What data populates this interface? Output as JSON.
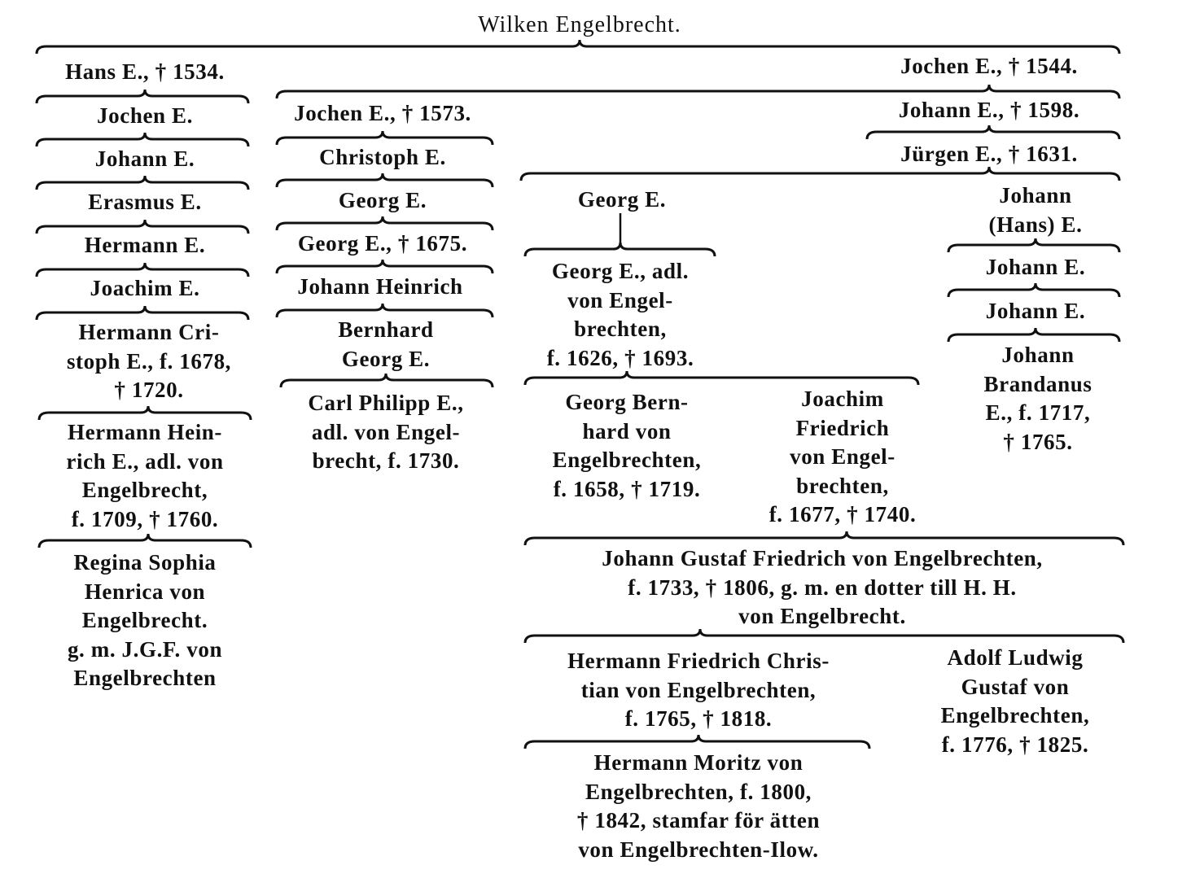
{
  "title": "Wilken Engelbrecht.",
  "nodes": {
    "hans": "Hans E., † 1534.",
    "jochen_a": "Jochen E.",
    "johann_a": "Johann E.",
    "erasmus": "Erasmus E.",
    "hermann_a": "Hermann E.",
    "joachim_a": "Joachim E.",
    "hermann_cristoph": "Hermann Cri-\nstoph E., f. 1678,\n† 1720.",
    "hermann_heinrich": "Hermann Hein-\nrich E., adl. von\nEngelbrecht,\nf. 1709, † 1760.",
    "regina": "Regina Sophia\nHenrica von\nEngelbrecht.\ng. m. J.G.F. von\nEngelbrechten",
    "jochen_1544": "Jochen E., † 1544.",
    "jochen_1573": "Jochen E., † 1573.",
    "christoph": "Christoph E.",
    "georg_b": "Georg E.",
    "georg_1675": "Georg E., † 1675.",
    "johann_heinrich": "Johann Heinrich",
    "bernhard_georg": "Bernhard\nGeorg E.",
    "carl_philipp": "Carl Philipp E.,\nadl. von Engel-\nbrecht, f. 1730.",
    "johann_1598": "Johann E., † 1598.",
    "jurgen": "Jürgen E., † 1631.",
    "georg_c": "Georg E.",
    "georg_adl": "Georg E., adl.\nvon Engel-\nbrechten,\nf. 1626, † 1693.",
    "georg_bernhard": "Georg Bern-\nhard von\nEngelbrechten,\nf. 1658, † 1719.",
    "joachim_friedrich": "Joachim\nFriedrich\nvon Engel-\nbrechten,\nf. 1677, † 1740.",
    "johann_gustaf": "Johann Gustaf Friedrich von Engelbrechten,\nf. 1733, † 1806, g. m. en dotter till H. H.\nvon Engelbrecht.",
    "hermann_friedrich": "Hermann Friedrich Chris-\ntian von Engelbrechten,\nf. 1765, † 1818.",
    "adolf_ludwig": "Adolf Ludwig\nGustaf von\nEngelbrechten,\nf. 1776, † 1825.",
    "hermann_moritz": "Hermann Moritz von\nEngelbrechten, f. 1800,\n† 1842, stamfar för ätten\nvon Engelbrechten-Ilow.",
    "johann_hans": "Johann\n(Hans) E.",
    "johann_c": "Johann E.",
    "johann_d": "Johann E.",
    "johann_brandanus": "Johann\nBrandanus\nE., f. 1717,\n† 1765."
  },
  "colors": {
    "ink": "#111111",
    "paper": "#ffffff"
  }
}
